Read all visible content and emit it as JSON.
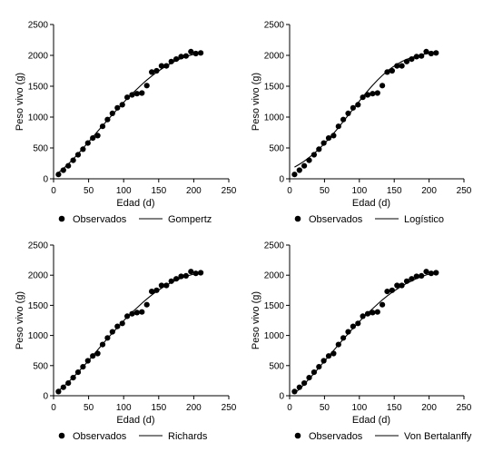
{
  "chart_data": [
    {
      "type": "scatter",
      "xlabel": "Edad (d)",
      "ylabel": "Peso vivo (g)",
      "xlim": [
        0,
        250
      ],
      "ylim": [
        0,
        2500
      ],
      "xticks": [
        "0",
        "50",
        "100",
        "150",
        "200",
        "250"
      ],
      "yticks": [
        "0",
        "500",
        "1000",
        "1500",
        "2000",
        "2500"
      ],
      "grid": false,
      "legend_position": "bottom",
      "series": [
        {
          "name": "Observados",
          "type": "scatter",
          "x": [
            7,
            14,
            21,
            28,
            35,
            42,
            49,
            56,
            63,
            70,
            77,
            84,
            91,
            98,
            105,
            112,
            119,
            126,
            133,
            140,
            147,
            154,
            161,
            168,
            175,
            182,
            189,
            196,
            203,
            210
          ],
          "y": [
            70,
            140,
            210,
            300,
            390,
            480,
            580,
            660,
            700,
            850,
            960,
            1060,
            1150,
            1200,
            1320,
            1360,
            1380,
            1390,
            1510,
            1730,
            1750,
            1830,
            1830,
            1900,
            1940,
            1980,
            1990,
            2060,
            2030,
            2040
          ]
        },
        {
          "name": "Gompertz",
          "type": "line",
          "x": [
            7,
            14,
            21,
            28,
            35,
            42,
            49,
            56,
            63,
            70,
            77,
            84,
            91,
            98,
            105,
            112,
            119,
            126,
            133,
            140,
            147,
            154,
            161,
            168,
            175,
            182,
            189,
            196,
            203,
            210
          ],
          "y": [
            100,
            165,
            240,
            320,
            405,
            495,
            585,
            675,
            770,
            860,
            950,
            1040,
            1130,
            1215,
            1300,
            1380,
            1455,
            1530,
            1600,
            1665,
            1725,
            1780,
            1830,
            1875,
            1915,
            1950,
            1980,
            2005,
            2025,
            2040
          ]
        }
      ]
    },
    {
      "type": "scatter",
      "xlabel": "Edad (d)",
      "ylabel": "Peso vivo (g)",
      "xlim": [
        0,
        250
      ],
      "ylim": [
        0,
        2500
      ],
      "xticks": [
        "0",
        "50",
        "100",
        "150",
        "200",
        "250"
      ],
      "yticks": [
        "0",
        "500",
        "1000",
        "1500",
        "2000",
        "2500"
      ],
      "grid": false,
      "legend_position": "bottom",
      "series": [
        {
          "name": "Observados",
          "type": "scatter",
          "x": [
            7,
            14,
            21,
            28,
            35,
            42,
            49,
            56,
            63,
            70,
            77,
            84,
            91,
            98,
            105,
            112,
            119,
            126,
            133,
            140,
            147,
            154,
            161,
            168,
            175,
            182,
            189,
            196,
            203,
            210
          ],
          "y": [
            70,
            140,
            210,
            300,
            390,
            480,
            580,
            660,
            700,
            850,
            960,
            1060,
            1150,
            1200,
            1320,
            1360,
            1380,
            1390,
            1510,
            1730,
            1750,
            1830,
            1830,
            1900,
            1940,
            1980,
            1990,
            2060,
            2030,
            2040
          ]
        },
        {
          "name": "Logístico",
          "type": "line",
          "x": [
            7,
            14,
            21,
            28,
            35,
            42,
            49,
            56,
            63,
            70,
            77,
            84,
            91,
            98,
            105,
            112,
            119,
            126,
            133,
            140,
            147,
            154,
            161,
            168,
            175,
            182,
            189,
            196,
            203,
            210
          ],
          "y": [
            190,
            235,
            285,
            345,
            410,
            480,
            560,
            645,
            735,
            830,
            930,
            1030,
            1130,
            1230,
            1330,
            1425,
            1515,
            1600,
            1675,
            1745,
            1805,
            1855,
            1900,
            1935,
            1965,
            1990,
            2010,
            2025,
            2035,
            2040
          ]
        }
      ]
    },
    {
      "type": "scatter",
      "xlabel": "Edad (d)",
      "ylabel": "Peso vivo (g)",
      "xlim": [
        0,
        250
      ],
      "ylim": [
        0,
        2500
      ],
      "xticks": [
        "0",
        "50",
        "100",
        "150",
        "200",
        "250"
      ],
      "yticks": [
        "0",
        "500",
        "1000",
        "1500",
        "2000",
        "2500"
      ],
      "grid": false,
      "legend_position": "bottom",
      "series": [
        {
          "name": "Observados",
          "type": "scatter",
          "x": [
            7,
            14,
            21,
            28,
            35,
            42,
            49,
            56,
            63,
            70,
            77,
            84,
            91,
            98,
            105,
            112,
            119,
            126,
            133,
            140,
            147,
            154,
            161,
            168,
            175,
            182,
            189,
            196,
            203,
            210
          ],
          "y": [
            70,
            140,
            210,
            300,
            390,
            480,
            580,
            660,
            700,
            850,
            960,
            1060,
            1150,
            1200,
            1320,
            1360,
            1380,
            1390,
            1510,
            1730,
            1750,
            1830,
            1830,
            1900,
            1940,
            1980,
            1990,
            2060,
            2030,
            2040
          ]
        },
        {
          "name": "Richards",
          "type": "line",
          "x": [
            7,
            14,
            21,
            28,
            35,
            42,
            49,
            56,
            63,
            70,
            77,
            84,
            91,
            98,
            105,
            112,
            119,
            126,
            133,
            140,
            147,
            154,
            161,
            168,
            175,
            182,
            189,
            196,
            203,
            210
          ],
          "y": [
            80,
            150,
            225,
            305,
            390,
            480,
            570,
            665,
            760,
            855,
            950,
            1040,
            1130,
            1220,
            1305,
            1385,
            1460,
            1535,
            1605,
            1670,
            1730,
            1785,
            1835,
            1880,
            1915,
            1950,
            1980,
            2005,
            2025,
            2040
          ]
        }
      ]
    },
    {
      "type": "scatter",
      "xlabel": "Edad (d)",
      "ylabel": "Peso vivo (g)",
      "xlim": [
        0,
        250
      ],
      "ylim": [
        0,
        2500
      ],
      "xticks": [
        "0",
        "50",
        "100",
        "150",
        "200",
        "250"
      ],
      "yticks": [
        "0",
        "500",
        "1000",
        "1500",
        "2000",
        "2500"
      ],
      "grid": false,
      "legend_position": "bottom",
      "series": [
        {
          "name": "Observados",
          "type": "scatter",
          "x": [
            7,
            14,
            21,
            28,
            35,
            42,
            49,
            56,
            63,
            70,
            77,
            84,
            91,
            98,
            105,
            112,
            119,
            126,
            133,
            140,
            147,
            154,
            161,
            168,
            175,
            182,
            189,
            196,
            203,
            210
          ],
          "y": [
            70,
            140,
            210,
            300,
            390,
            480,
            580,
            660,
            700,
            850,
            960,
            1060,
            1150,
            1200,
            1320,
            1360,
            1380,
            1390,
            1510,
            1730,
            1750,
            1830,
            1830,
            1900,
            1940,
            1980,
            1990,
            2060,
            2030,
            2040
          ]
        },
        {
          "name": "Von Bertalanffy",
          "type": "line",
          "x": [
            7,
            14,
            21,
            28,
            35,
            42,
            49,
            56,
            63,
            70,
            77,
            84,
            91,
            98,
            105,
            112,
            119,
            126,
            133,
            140,
            147,
            154,
            161,
            168,
            175,
            182,
            189,
            196,
            203,
            210
          ],
          "y": [
            40,
            110,
            190,
            280,
            370,
            465,
            560,
            655,
            750,
            845,
            940,
            1030,
            1120,
            1205,
            1290,
            1370,
            1445,
            1520,
            1590,
            1655,
            1715,
            1770,
            1820,
            1865,
            1905,
            1945,
            1975,
            2005,
            2025,
            2045
          ]
        }
      ]
    }
  ]
}
